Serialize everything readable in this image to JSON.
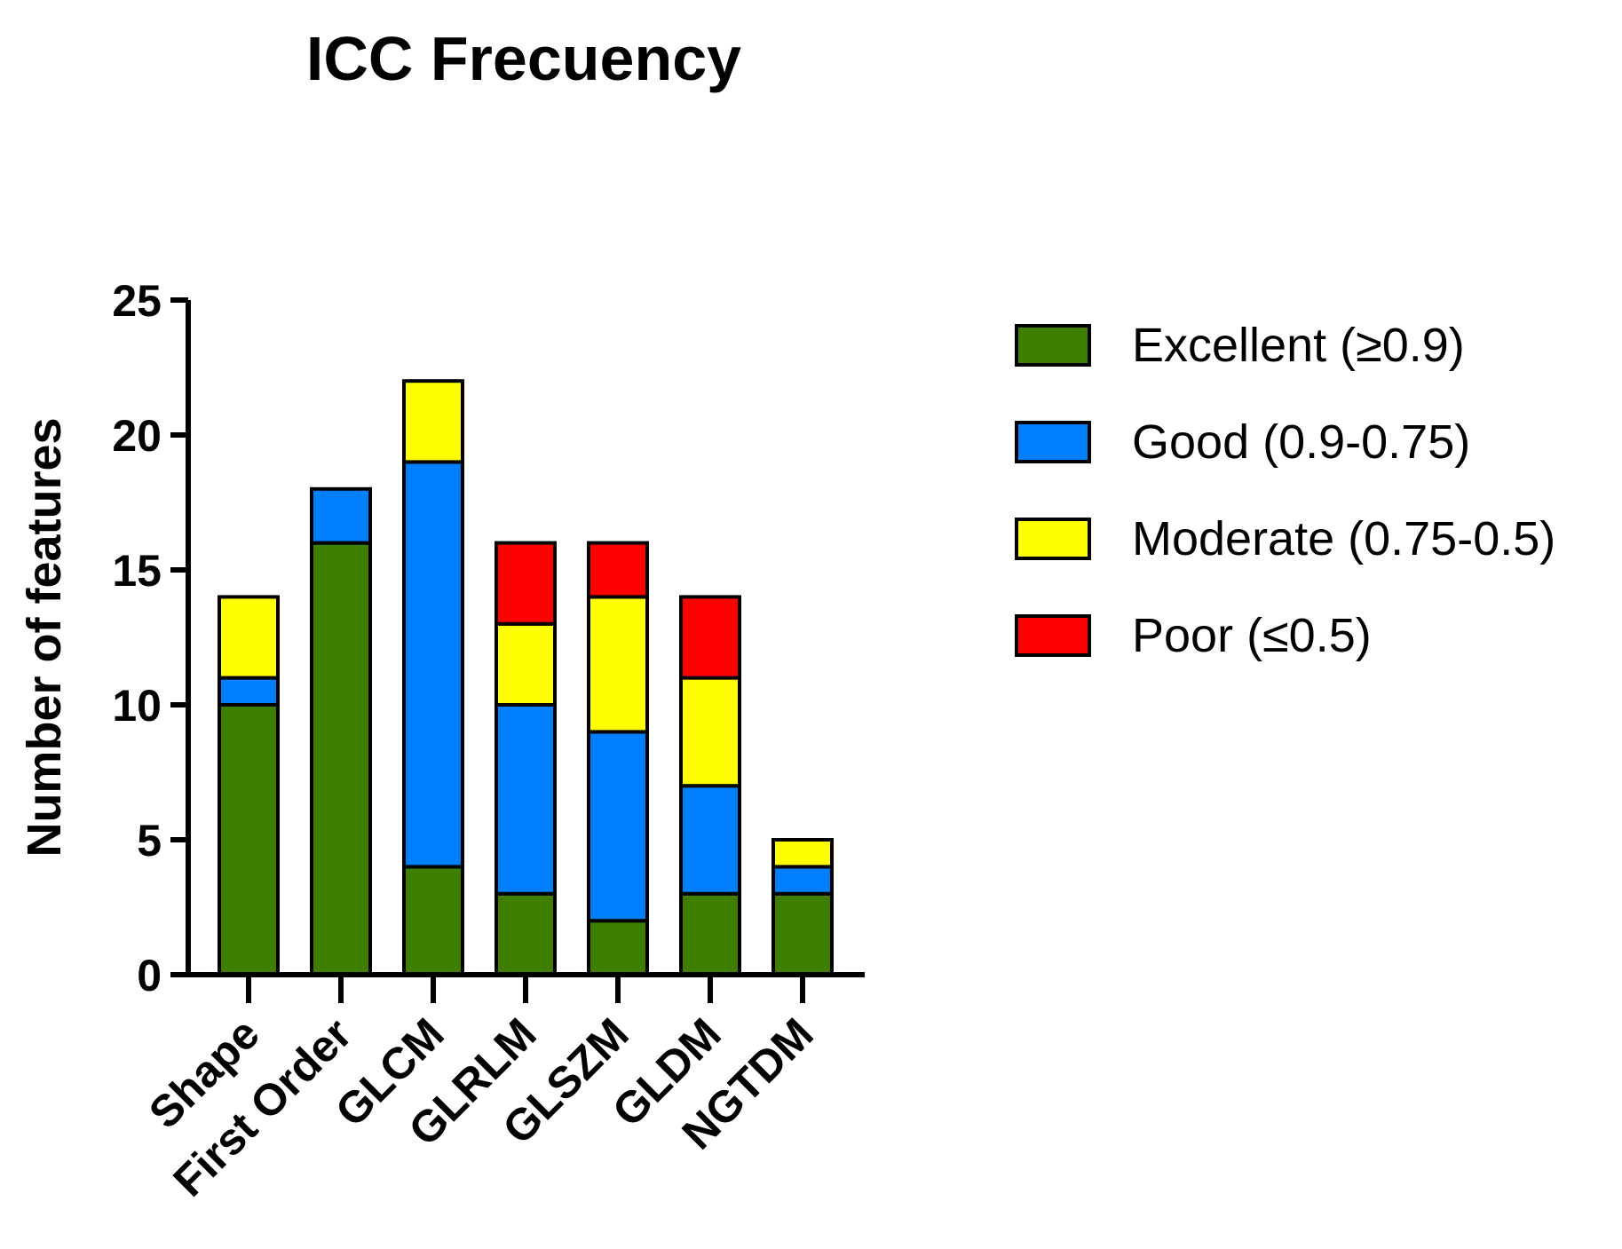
{
  "chart_data": {
    "type": "bar",
    "stacked": true,
    "title": "ICC Frecuency",
    "xlabel": "",
    "ylabel": "Number of features",
    "ylim": [
      0,
      25
    ],
    "yticks": [
      "0",
      "5",
      "10",
      "15",
      "20",
      "25"
    ],
    "categories": [
      "Shape",
      "First Order",
      "GLCM",
      "GLRLM",
      "GLSZM",
      "GLDM",
      "NGTDM"
    ],
    "series": [
      {
        "name": "Excellent (≥0.9)",
        "color": "#3f7f00",
        "values": [
          10,
          16,
          4,
          3,
          2,
          3,
          3
        ]
      },
      {
        "name": "Good (0.9-0.75)",
        "color": "#0080ff",
        "values": [
          1,
          2,
          15,
          7,
          7,
          4,
          1
        ]
      },
      {
        "name": "Moderate (0.75-0.5)",
        "color": "#ffff00",
        "values": [
          3,
          0,
          3,
          3,
          5,
          4,
          1
        ]
      },
      {
        "name": "Poor (≤0.5)",
        "color": "#ff0000",
        "values": [
          0,
          0,
          0,
          3,
          2,
          3,
          0
        ]
      }
    ],
    "legend_position": "right"
  }
}
